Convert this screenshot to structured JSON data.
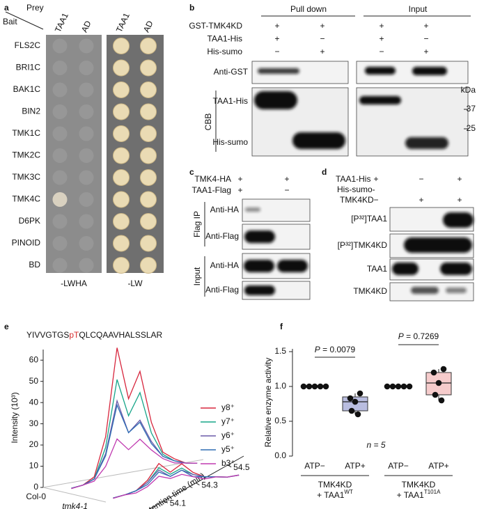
{
  "panel_labels": [
    "a",
    "b",
    "c",
    "d",
    "e",
    "f"
  ],
  "a": {
    "prey": "Prey",
    "bait": "Bait",
    "columns": [
      "TAA1",
      "AD",
      "TAA1",
      "AD"
    ],
    "rows": [
      "FLS2C",
      "BRI1C",
      "BAK1C",
      "BIN2",
      "TMK1C",
      "TMK2C",
      "TMK3C",
      "TMK4C",
      "D6PK",
      "PINOID",
      "BD"
    ],
    "plates": [
      "-LWHA",
      "-LW"
    ]
  },
  "b": {
    "groups": [
      "Pull down",
      "Input"
    ],
    "conditions": [
      "GST-TMK4KD",
      "TAA1-His",
      "His-sumo"
    ],
    "signs": [
      [
        "+",
        "+",
        "+",
        "+"
      ],
      [
        "+",
        "−",
        "+",
        "−"
      ],
      [
        "−",
        "+",
        "−",
        "+"
      ]
    ],
    "blot": "Anti-GST",
    "stain": "CBB",
    "bands": [
      "TAA1-His",
      "His-sumo"
    ],
    "marker_unit": "kDa",
    "markers": [
      37,
      25
    ]
  },
  "c": {
    "conditions": [
      "TMK4-HA",
      "TAA1-Flag"
    ],
    "signs": [
      [
        "+",
        "+"
      ],
      [
        "+",
        "−"
      ]
    ],
    "sections": [
      {
        "name": "Flag IP",
        "blots": [
          "Anti-HA",
          "Anti-Flag"
        ]
      },
      {
        "name": "Input",
        "blots": [
          "Anti-HA",
          "Anti-Flag"
        ]
      }
    ]
  },
  "d": {
    "conditions": [
      [
        "TAA1-His"
      ],
      [
        "His-sumo-",
        "TMK4KD"
      ]
    ],
    "signs": [
      [
        "+",
        "−",
        "+"
      ],
      [
        "−",
        "+",
        "+"
      ]
    ],
    "blots": [
      "[P³²]TAA1",
      "[P³²]TMK4KD",
      "TAA1",
      "TMK4KD"
    ]
  },
  "chart_data": [
    {
      "type": "line3d",
      "peptide": {
        "before": "YIVVGTGS",
        "highlight": "pT",
        "after": "QLCQAAVHALSSLAR"
      },
      "ylabel": "Intensity (10³)",
      "xlabel": "Retention time (min)",
      "samples": [
        "Col-0",
        "tmk4-1"
      ],
      "x": [
        53.95,
        54.0,
        54.05,
        54.1,
        54.15,
        54.2,
        54.25,
        54.3,
        54.35,
        54.4,
        54.45,
        54.5
      ],
      "xlim": [
        53.9,
        54.6
      ],
      "xticks": [
        54.1,
        54.3,
        54.5
      ],
      "ylim": [
        0,
        65
      ],
      "yticks": [
        0,
        10,
        20,
        30,
        40,
        50,
        60
      ],
      "series": [
        {
          "name": "y8⁺",
          "color": "#d7263d",
          "values": [
            [
              0.5,
              1,
              4,
              22,
              63,
              38,
              50,
              25,
              10,
              6,
              3,
              2
            ],
            [
              0.5,
              1,
              2,
              6,
              13,
              8,
              11,
              6,
              3,
              2,
              1,
              1
            ]
          ]
        },
        {
          "name": "y7⁺",
          "color": "#17a589",
          "values": [
            [
              0.5,
              1,
              3,
              17,
              48,
              30,
              40,
              20,
              9,
              5,
              3,
              2
            ],
            [
              0.5,
              1,
              2,
              5,
              11,
              7,
              9,
              5,
              3,
              2,
              1,
              1
            ]
          ]
        },
        {
          "name": "y6⁺",
          "color": "#6a5aa8",
          "values": [
            [
              0.5,
              1,
              3,
              14,
              38,
              22,
              27,
              16,
              8,
              5,
              3,
              2
            ],
            [
              0.5,
              1,
              2,
              5,
              10,
              6,
              8,
              5,
              3,
              2,
              1,
              1
            ]
          ]
        },
        {
          "name": "y5⁺",
          "color": "#2e6db4",
          "values": [
            [
              0.5,
              1,
              3,
              13,
              36,
              22,
              26,
              15,
              8,
              5,
              3,
              2
            ],
            [
              0.5,
              1,
              2,
              4,
              9,
              6,
              8,
              4,
              3,
              2,
              1,
              1
            ]
          ]
        },
        {
          "name": "b3⁺",
          "color": "#c03ab0",
          "values": [
            [
              0.3,
              1,
              2,
              8,
              20,
              14,
              18,
              12,
              7,
              4,
              3,
              2
            ],
            [
              0.3,
              1,
              1,
              3,
              7,
              5,
              6,
              4,
              2,
              2,
              1,
              1
            ]
          ]
        }
      ]
    },
    {
      "type": "box",
      "ylabel": "Relative enzyme activity",
      "ylim": [
        0,
        1.5
      ],
      "yticks": [
        {
          "value": 0,
          "label": "0.0"
        },
        0.5,
        {
          "value": 1,
          "label": "1.0"
        },
        1.5
      ],
      "categories": [
        "ATP−",
        "ATP+",
        "ATP−",
        "ATP+"
      ],
      "groups": [
        {
          "name": "TMK4KD",
          "label": "+ TAA1",
          "sup": "WT"
        },
        {
          "name": "TMK4KD",
          "label": "+ TAA1",
          "sup": "T101A"
        }
      ],
      "boxes": [
        {
          "min": 1,
          "q1": 1,
          "median": 1,
          "q3": 1,
          "max": 1,
          "points": [
            1,
            1,
            1,
            1,
            1
          ],
          "color": "#ffffff"
        },
        {
          "min": 0.6,
          "q1": 0.65,
          "median": 0.78,
          "q3": 0.85,
          "max": 0.9,
          "points": [
            0.9,
            0.83,
            0.78,
            0.65,
            0.6
          ],
          "color": "#b9bde0"
        },
        {
          "min": 1,
          "q1": 1,
          "median": 1,
          "q3": 1,
          "max": 1,
          "points": [
            1,
            1,
            1,
            1,
            1
          ],
          "color": "#ffffff"
        },
        {
          "min": 0.8,
          "q1": 0.88,
          "median": 1.05,
          "q3": 1.2,
          "max": 1.25,
          "points": [
            1.25,
            1.2,
            1.05,
            0.88,
            0.8
          ],
          "color": "#f6cccc"
        }
      ],
      "annotations": [
        {
          "italic": "P",
          "text": " = 0.0079"
        },
        {
          "italic": "P",
          "text": " = 0.7269"
        }
      ],
      "note": "n = 5"
    }
  ]
}
